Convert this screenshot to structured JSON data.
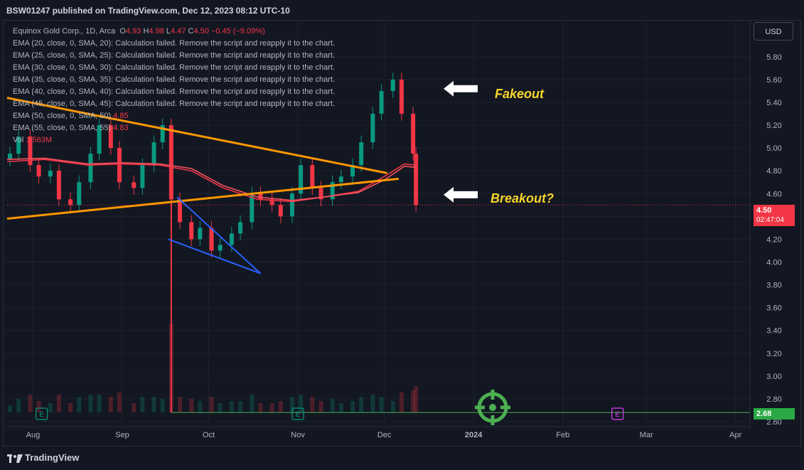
{
  "publisher": "BSW01247 published on TradingView.com, Dec 12, 2023 08:12 UTC-10",
  "legend": {
    "symbol": "Equinox Gold Corp., 1D, Arca",
    "o_label": "O",
    "o_value": "4.93",
    "h_label": "H",
    "h_value": "4.98",
    "l_label": "L",
    "l_value": "4.47",
    "c_label": "C",
    "c_value": "4.50",
    "change": "−0.45 (−9.09%)",
    "ema_rows": [
      "EMA (20, close, 0, SMA, 20): Calculation failed. Remove the script and reapply it to the chart.",
      "EMA (25, close, 0, SMA, 25): Calculation failed. Remove the script and reapply it to the chart.",
      "EMA (30, close, 0, SMA, 30): Calculation failed. Remove the script and reapply it to the chart.",
      "EMA (35, close, 0, SMA, 35): Calculation failed. Remove the script and reapply it to the chart.",
      "EMA (40, close, 0, SMA, 40): Calculation failed. Remove the script and reapply it to the chart.",
      "EMA (45, close, 0, SMA, 45): Calculation failed. Remove the script and reapply it to the chart."
    ],
    "ema50_label": "EMA (50, close, 0, SMA, 50)",
    "ema50_value": "4.85",
    "ema55_label": "EMA (55, close, 0, SMA, 55)",
    "ema55_value": "4.83",
    "vol_label": "Vol",
    "vol_value": "1.583M"
  },
  "currency_button": "USD",
  "price_tag": {
    "price": "4.50",
    "countdown": "02:47:04"
  },
  "low_tag": "2.68",
  "annotations": {
    "fakeout": "Fakeout",
    "breakout": "Breakout?"
  },
  "footer_brand": "TradingView",
  "chart_data": {
    "type": "candlestick",
    "title": "Equinox Gold Corp., 1D, Arca",
    "ylim": [
      2.58,
      6.0
    ],
    "y_ticks": [
      2.6,
      2.8,
      3.0,
      3.2,
      3.4,
      3.6,
      3.8,
      4.0,
      4.2,
      4.4,
      4.6,
      4.8,
      5.0,
      5.2,
      5.4,
      5.6,
      5.8
    ],
    "x_ticks": [
      "Aug",
      "Sep",
      "Oct",
      "Nov",
      "Dec",
      "2024",
      "Feb",
      "Mar",
      "Apr"
    ],
    "x_tick_dates": [
      "2023-08-01",
      "2023-09-01",
      "2023-10-01",
      "2023-11-01",
      "2023-12-01",
      "2024-01-01",
      "2024-02-01",
      "2024-03-01",
      "2024-04-01"
    ],
    "xlim": [
      "2023-07-23",
      "2024-04-06"
    ],
    "last_price": 4.5,
    "spike_low": 2.68,
    "close_series": {
      "dates": [
        "2023-07-24",
        "2023-07-27",
        "2023-07-31",
        "2023-08-03",
        "2023-08-07",
        "2023-08-10",
        "2023-08-14",
        "2023-08-17",
        "2023-08-21",
        "2023-08-24",
        "2023-08-28",
        "2023-08-31",
        "2023-09-05",
        "2023-09-08",
        "2023-09-12",
        "2023-09-15",
        "2023-09-18",
        "2023-09-21",
        "2023-09-25",
        "2023-09-28",
        "2023-10-02",
        "2023-10-05",
        "2023-10-09",
        "2023-10-12",
        "2023-10-16",
        "2023-10-19",
        "2023-10-23",
        "2023-10-26",
        "2023-10-30",
        "2023-11-02",
        "2023-11-06",
        "2023-11-09",
        "2023-11-13",
        "2023-11-16",
        "2023-11-20",
        "2023-11-23",
        "2023-11-27",
        "2023-11-30",
        "2023-12-04",
        "2023-12-07",
        "2023-12-11",
        "2023-12-12"
      ],
      "values": [
        4.95,
        5.1,
        4.85,
        4.75,
        4.8,
        4.55,
        4.5,
        4.7,
        4.95,
        5.2,
        5.0,
        4.7,
        4.65,
        4.85,
        5.05,
        5.2,
        4.55,
        4.35,
        4.2,
        4.3,
        4.1,
        4.15,
        4.25,
        4.35,
        4.6,
        4.55,
        4.5,
        4.4,
        4.6,
        4.85,
        4.65,
        4.55,
        4.7,
        4.75,
        4.85,
        5.05,
        5.3,
        5.5,
        5.6,
        5.3,
        4.95,
        4.5
      ]
    },
    "ema_series": [
      {
        "name": "EMA (50, close, 0, SMA, 50)",
        "color": "#f23645",
        "dates": [
          "2023-07-23",
          "2023-08-05",
          "2023-08-20",
          "2023-09-01",
          "2023-09-14",
          "2023-09-25",
          "2023-10-06",
          "2023-10-18",
          "2023-10-30",
          "2023-11-10",
          "2023-11-22",
          "2023-12-01",
          "2023-12-08",
          "2023-12-12"
        ],
        "values": [
          4.88,
          4.9,
          4.85,
          4.86,
          4.85,
          4.8,
          4.65,
          4.55,
          4.53,
          4.57,
          4.62,
          4.75,
          4.86,
          4.85
        ]
      },
      {
        "name": "EMA (55, close, 0, SMA, 55)",
        "color": "#f7525f",
        "dates": [
          "2023-07-23",
          "2023-08-05",
          "2023-08-20",
          "2023-09-01",
          "2023-09-14",
          "2023-09-25",
          "2023-10-06",
          "2023-10-18",
          "2023-10-30",
          "2023-11-10",
          "2023-11-22",
          "2023-12-01",
          "2023-12-08",
          "2023-12-12"
        ],
        "values": [
          4.9,
          4.91,
          4.86,
          4.87,
          4.86,
          4.82,
          4.67,
          4.57,
          4.54,
          4.57,
          4.61,
          4.72,
          4.84,
          4.83
        ]
      }
    ],
    "trendlines": [
      {
        "name": "descending-resistance",
        "color": "#ff9800",
        "from": [
          "2023-07-23",
          5.44
        ],
        "to": [
          "2023-12-02",
          4.78
        ]
      },
      {
        "name": "ascending-support",
        "color": "#ff9800",
        "from": [
          "2023-07-23",
          4.38
        ],
        "to": [
          "2023-12-06",
          4.73
        ]
      }
    ],
    "wedge": {
      "color": "#2962ff",
      "upper": {
        "from": [
          "2023-09-20",
          4.57
        ],
        "to": [
          "2023-10-19",
          3.9
        ]
      },
      "lower": {
        "from": [
          "2023-09-17",
          4.2
        ],
        "to": [
          "2023-10-19",
          3.9
        ]
      }
    },
    "event_markers": [
      {
        "date": "2023-08-04",
        "label": "E"
      },
      {
        "date": "2023-11-01",
        "label": "E"
      },
      {
        "date": "2024-02-20",
        "label": "E"
      }
    ],
    "volume_note": "volume bars at bottom, spike on 2023-09-18"
  }
}
